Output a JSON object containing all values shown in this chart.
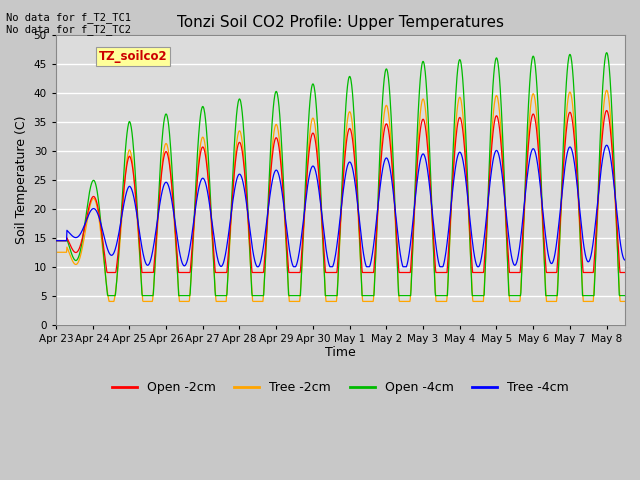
{
  "title": "Tonzi Soil CO2 Profile: Upper Temperatures",
  "ylabel": "Soil Temperature (C)",
  "xlabel": "Time",
  "top_left_text": "No data for f_T2_TC1\nNo data for f_T2_TC2",
  "legend_box_label": "TZ_soilco2",
  "x_tick_labels": [
    "Apr 23",
    "Apr 24",
    "Apr 25",
    "Apr 26",
    "Apr 27",
    "Apr 28",
    "Apr 29",
    "Apr 30",
    "May 1",
    "May 2",
    "May 3",
    "May 4",
    "May 5",
    "May 6",
    "May 7",
    "May 8"
  ],
  "ylim": [
    0,
    50
  ],
  "yticks": [
    0,
    5,
    10,
    15,
    20,
    25,
    30,
    35,
    40,
    45,
    50
  ],
  "colors": {
    "open_2cm": "#FF0000",
    "tree_2cm": "#FFA500",
    "open_4cm": "#00BB00",
    "tree_4cm": "#0000FF"
  },
  "legend_entries": [
    "Open -2cm",
    "Tree -2cm",
    "Open -4cm",
    "Tree -4cm"
  ],
  "fig_bg_color": "#C8C8C8",
  "plot_bg_color": "#DCDCDC",
  "num_days": 15.5,
  "points_per_day": 96
}
